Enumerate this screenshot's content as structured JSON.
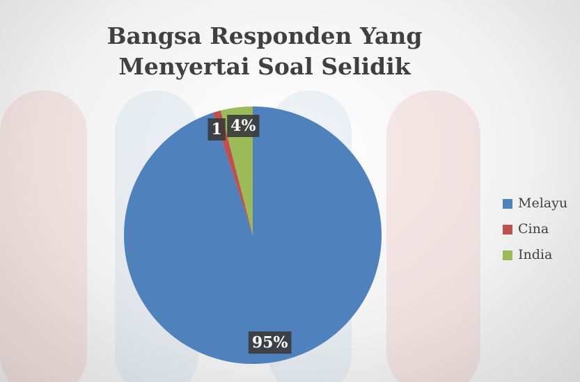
{
  "chart_data": {
    "type": "pie",
    "title": "Bangsa Responden Yang Menyertai Soal Selidik",
    "categories": [
      "Melayu",
      "Cina",
      "India"
    ],
    "values": [
      95,
      1,
      4
    ],
    "value_labels": [
      "95%",
      "1",
      "4%"
    ],
    "colors": [
      "#4f81bd",
      "#c0504d",
      "#9bbb59"
    ],
    "legend": "right"
  }
}
